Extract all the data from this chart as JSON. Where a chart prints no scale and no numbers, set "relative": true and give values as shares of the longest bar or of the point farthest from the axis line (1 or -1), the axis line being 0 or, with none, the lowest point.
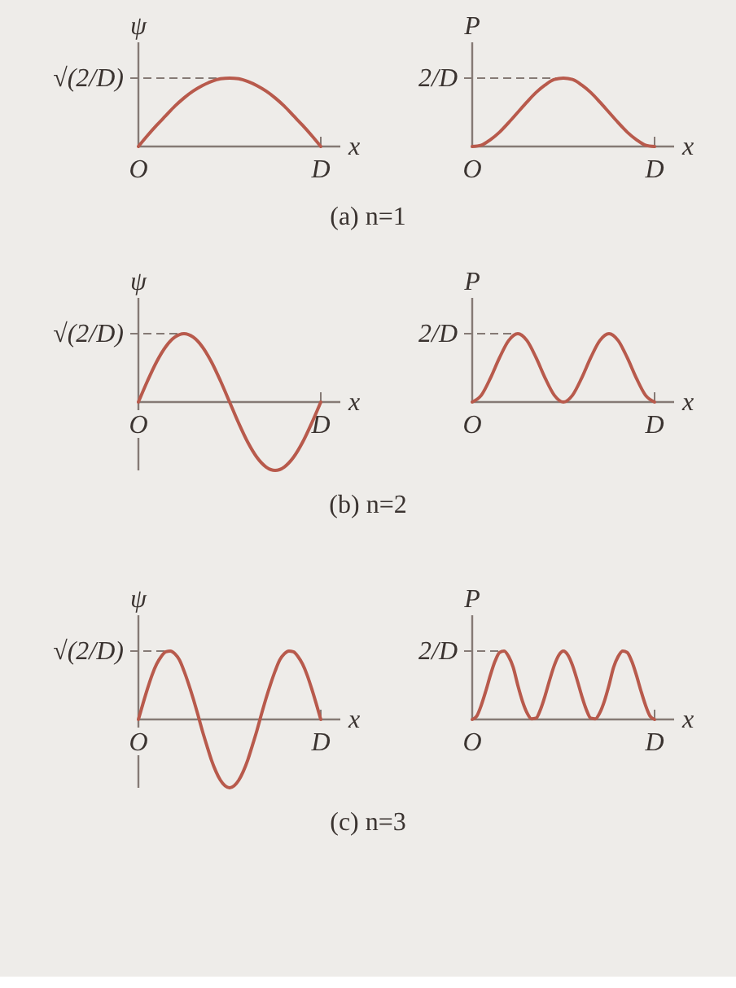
{
  "chart_data": [
    {
      "type": "line",
      "relative": true,
      "ylabel": "ψ",
      "xlabel": "x",
      "categories": [
        "O",
        null,
        null,
        null,
        null,
        null,
        null,
        null,
        null,
        null,
        null,
        null,
        null,
        null,
        null,
        null,
        null,
        null,
        null,
        null,
        "D"
      ],
      "ref_lines": [
        {
          "axis": "y",
          "value": 1,
          "label": "√(2/D)",
          "line_style": "dashed"
        }
      ],
      "annotations": [
        "(a) n=1"
      ],
      "series": [
        {
          "color": "#b85a4c",
          "values": [
            0,
            0.16,
            0.31,
            0.45,
            0.59,
            0.71,
            0.81,
            0.89,
            0.95,
            0.99,
            1,
            0.99,
            0.95,
            0.89,
            0.81,
            0.71,
            0.59,
            0.45,
            0.31,
            0.16,
            0
          ]
        }
      ]
    },
    {
      "type": "line",
      "relative": true,
      "ylabel": "P",
      "xlabel": "x",
      "categories": [
        "O",
        null,
        null,
        null,
        null,
        null,
        null,
        null,
        null,
        null,
        null,
        null,
        null,
        null,
        null,
        null,
        null,
        null,
        null,
        null,
        "D"
      ],
      "ref_lines": [
        {
          "axis": "y",
          "value": 1,
          "label": "2/D",
          "line_style": "dashed"
        }
      ],
      "series": [
        {
          "color": "#b85a4c",
          "values": [
            0,
            0.02,
            0.1,
            0.21,
            0.35,
            0.5,
            0.65,
            0.79,
            0.9,
            0.98,
            1,
            0.98,
            0.9,
            0.79,
            0.65,
            0.5,
            0.35,
            0.21,
            0.1,
            0.02,
            0
          ]
        }
      ]
    },
    {
      "type": "line",
      "relative": true,
      "ylabel": "ψ",
      "xlabel": "x",
      "categories": [
        "O",
        null,
        null,
        null,
        null,
        null,
        null,
        null,
        null,
        null,
        null,
        null,
        null,
        null,
        null,
        null,
        null,
        null,
        null,
        null,
        "D"
      ],
      "ref_lines": [
        {
          "axis": "y",
          "value": 1,
          "label": "√(2/D)",
          "line_style": "dashed"
        }
      ],
      "annotations": [
        "(b) n=2"
      ],
      "series": [
        {
          "color": "#b85a4c",
          "values": [
            0,
            0.31,
            0.59,
            0.81,
            0.95,
            1,
            0.95,
            0.81,
            0.59,
            0.31,
            0,
            -0.31,
            -0.59,
            -0.81,
            -0.95,
            -1,
            -0.95,
            -0.81,
            -0.59,
            -0.31,
            0
          ]
        }
      ]
    },
    {
      "type": "line",
      "relative": true,
      "ylabel": "P",
      "xlabel": "x",
      "categories": [
        "O",
        null,
        null,
        null,
        null,
        null,
        null,
        null,
        null,
        null,
        null,
        null,
        null,
        null,
        null,
        null,
        null,
        null,
        null,
        null,
        "D"
      ],
      "ref_lines": [
        {
          "axis": "y",
          "value": 1,
          "label": "2/D",
          "line_style": "dashed"
        }
      ],
      "series": [
        {
          "color": "#b85a4c",
          "values": [
            0,
            0.1,
            0.35,
            0.65,
            0.9,
            1,
            0.9,
            0.65,
            0.35,
            0.1,
            0,
            0.1,
            0.35,
            0.65,
            0.9,
            1,
            0.9,
            0.65,
            0.35,
            0.1,
            0
          ]
        }
      ]
    },
    {
      "type": "line",
      "relative": true,
      "ylabel": "ψ",
      "xlabel": "x",
      "categories": [
        "O",
        null,
        null,
        null,
        null,
        null,
        null,
        null,
        null,
        null,
        null,
        null,
        null,
        null,
        null,
        null,
        null,
        null,
        null,
        null,
        null,
        null,
        null,
        null,
        null,
        null,
        null,
        null,
        null,
        null,
        null,
        null,
        null,
        null,
        null,
        null,
        null,
        null,
        null,
        null,
        "D"
      ],
      "ref_lines": [
        {
          "axis": "y",
          "value": 1,
          "label": "√(2/D)",
          "line_style": "dashed"
        }
      ],
      "annotations": [
        "(c) n=3"
      ],
      "series": [
        {
          "color": "#b85a4c",
          "values": [
            0,
            0.23,
            0.45,
            0.65,
            0.81,
            0.92,
            0.99,
            1,
            0.96,
            0.87,
            0.71,
            0.52,
            0.31,
            0.08,
            -0.16,
            -0.38,
            -0.59,
            -0.76,
            -0.89,
            -0.97,
            -1,
            -0.97,
            -0.89,
            -0.76,
            -0.59,
            -0.38,
            -0.16,
            0.08,
            0.31,
            0.52,
            0.71,
            0.87,
            0.96,
            1,
            0.99,
            0.92,
            0.81,
            0.65,
            0.45,
            0.23,
            0
          ]
        }
      ]
    },
    {
      "type": "line",
      "relative": true,
      "ylabel": "P",
      "xlabel": "x",
      "categories": [
        "O",
        null,
        null,
        null,
        null,
        null,
        null,
        null,
        null,
        null,
        null,
        null,
        null,
        null,
        null,
        null,
        null,
        null,
        null,
        null,
        null,
        null,
        null,
        null,
        null,
        null,
        null,
        null,
        null,
        null,
        null,
        null,
        null,
        null,
        null,
        null,
        null,
        null,
        null,
        null,
        "D"
      ],
      "ref_lines": [
        {
          "axis": "y",
          "value": 1,
          "label": "2/D",
          "line_style": "dashed"
        }
      ],
      "series": [
        {
          "color": "#b85a4c",
          "values": [
            0,
            0.05,
            0.21,
            0.42,
            0.65,
            0.85,
            0.98,
            1,
            0.92,
            0.76,
            0.5,
            0.27,
            0.1,
            0.01,
            0.02,
            0.15,
            0.35,
            0.58,
            0.79,
            0.94,
            1,
            0.94,
            0.79,
            0.58,
            0.35,
            0.15,
            0.02,
            0.01,
            0.1,
            0.27,
            0.5,
            0.76,
            0.92,
            1,
            0.98,
            0.85,
            0.65,
            0.42,
            0.21,
            0.05,
            0
          ]
        }
      ]
    }
  ]
}
